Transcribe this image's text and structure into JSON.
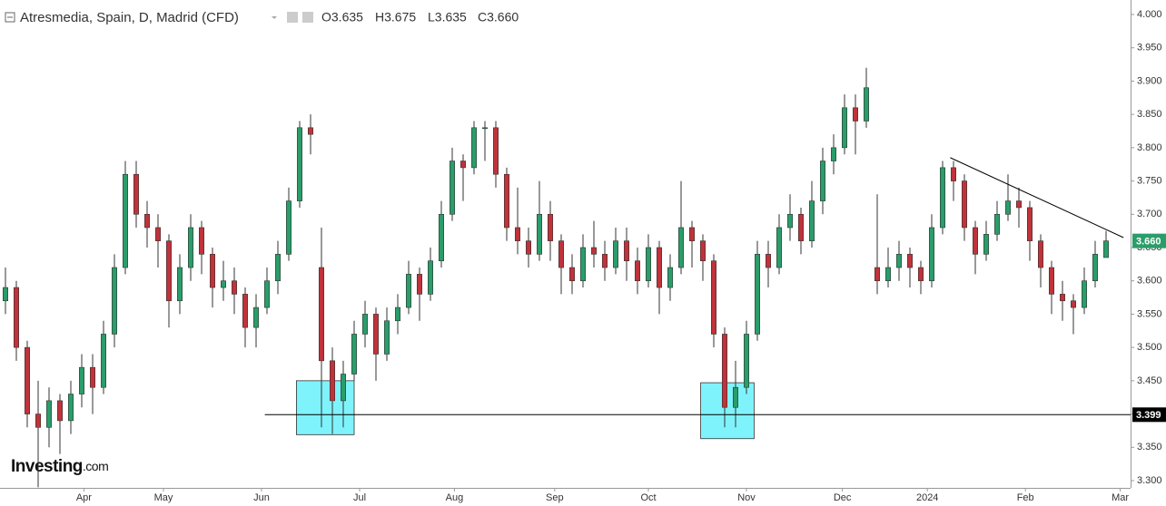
{
  "chart_data": {
    "type": "candlestick",
    "title": "Atresmedia, Spain, D, Madrid (CFD)",
    "legend_values": [
      "O3.635",
      "H3.675",
      "L3.635",
      "C3.660"
    ],
    "brand": [
      "Investing",
      ".com"
    ],
    "up_color": "#2a9d6a",
    "down_color": "#c0333a",
    "xlim": [
      -0.5,
      103.25
    ],
    "xticks": [
      {
        "value": 7.2,
        "label": "Apr"
      },
      {
        "value": 14.5,
        "label": "May"
      },
      {
        "value": 23.5,
        "label": "Jun"
      },
      {
        "value": 32.5,
        "label": "Jul"
      },
      {
        "value": 41.2,
        "label": "Aug"
      },
      {
        "value": 50.4,
        "label": "Sep"
      },
      {
        "value": 59,
        "label": "Oct"
      },
      {
        "value": 68,
        "label": "Nov"
      },
      {
        "value": 76.8,
        "label": "Dec"
      },
      {
        "value": 84.6,
        "label": "2024"
      },
      {
        "value": 93.6,
        "label": "Feb"
      },
      {
        "value": 102.3,
        "label": "Mar"
      }
    ],
    "ylim": [
      3.3,
      4.0
    ],
    "yticks": [
      {
        "value": 4.0,
        "label": "4.000"
      },
      {
        "value": 3.95,
        "label": "3.950"
      },
      {
        "value": 3.9,
        "label": "3.900"
      },
      {
        "value": 3.85,
        "label": "3.850"
      },
      {
        "value": 3.8,
        "label": "3.800"
      },
      {
        "value": 3.75,
        "label": "3.750"
      },
      {
        "value": 3.7,
        "label": "3.700"
      },
      {
        "value": 3.65,
        "label": "3.650"
      },
      {
        "value": 3.6,
        "label": "3.600"
      },
      {
        "value": 3.55,
        "label": "3.550"
      },
      {
        "value": 3.5,
        "label": "3.500"
      },
      {
        "value": 3.45,
        "label": "3.450"
      },
      {
        "value": 3.4,
        "label": "3.400"
      },
      {
        "value": 3.35,
        "label": "3.350"
      },
      {
        "value": 3.3,
        "label": "3.300"
      }
    ],
    "series": [
      {
        "ohlc": [
          [
            3.57,
            3.62,
            3.55,
            3.59
          ],
          [
            3.59,
            3.6,
            3.48,
            3.5
          ],
          [
            3.5,
            3.51,
            3.38,
            3.4
          ],
          [
            3.4,
            3.45,
            3.29,
            3.38
          ],
          [
            3.38,
            3.44,
            3.35,
            3.42
          ],
          [
            3.42,
            3.43,
            3.34,
            3.39
          ],
          [
            3.39,
            3.45,
            3.37,
            3.43
          ],
          [
            3.43,
            3.49,
            3.41,
            3.47
          ],
          [
            3.47,
            3.49,
            3.4,
            3.44
          ],
          [
            3.44,
            3.54,
            3.43,
            3.52
          ],
          [
            3.52,
            3.64,
            3.5,
            3.62
          ],
          [
            3.62,
            3.78,
            3.61,
            3.76
          ],
          [
            3.76,
            3.78,
            3.68,
            3.7
          ],
          [
            3.7,
            3.72,
            3.65,
            3.68
          ],
          [
            3.68,
            3.7,
            3.62,
            3.66
          ],
          [
            3.66,
            3.67,
            3.53,
            3.57
          ],
          [
            3.57,
            3.64,
            3.55,
            3.62
          ],
          [
            3.62,
            3.7,
            3.6,
            3.68
          ],
          [
            3.68,
            3.69,
            3.61,
            3.64
          ],
          [
            3.64,
            3.65,
            3.56,
            3.59
          ],
          [
            3.59,
            3.63,
            3.57,
            3.6
          ],
          [
            3.6,
            3.62,
            3.55,
            3.58
          ],
          [
            3.58,
            3.59,
            3.5,
            3.53
          ],
          [
            3.53,
            3.58,
            3.5,
            3.56
          ],
          [
            3.56,
            3.62,
            3.55,
            3.6
          ],
          [
            3.6,
            3.66,
            3.58,
            3.64
          ],
          [
            3.64,
            3.74,
            3.63,
            3.72
          ],
          [
            3.72,
            3.84,
            3.71,
            3.83
          ],
          [
            3.83,
            3.85,
            3.79,
            3.82
          ],
          [
            3.62,
            3.68,
            3.38,
            3.48
          ],
          [
            3.48,
            3.5,
            3.37,
            3.42
          ],
          [
            3.42,
            3.48,
            3.38,
            3.46
          ],
          [
            3.46,
            3.54,
            3.45,
            3.52
          ],
          [
            3.52,
            3.57,
            3.5,
            3.55
          ],
          [
            3.55,
            3.56,
            3.45,
            3.49
          ],
          [
            3.49,
            3.56,
            3.48,
            3.54
          ],
          [
            3.54,
            3.58,
            3.52,
            3.56
          ],
          [
            3.56,
            3.63,
            3.55,
            3.61
          ],
          [
            3.61,
            3.62,
            3.54,
            3.58
          ],
          [
            3.58,
            3.65,
            3.57,
            3.63
          ],
          [
            3.63,
            3.72,
            3.62,
            3.7
          ],
          [
            3.7,
            3.8,
            3.69,
            3.78
          ],
          [
            3.78,
            3.79,
            3.72,
            3.77
          ],
          [
            3.77,
            3.84,
            3.76,
            3.83
          ],
          [
            3.83,
            3.84,
            3.78,
            3.83
          ],
          [
            3.83,
            3.84,
            3.74,
            3.76
          ],
          [
            3.76,
            3.77,
            3.66,
            3.68
          ],
          [
            3.68,
            3.74,
            3.64,
            3.66
          ],
          [
            3.66,
            3.68,
            3.62,
            3.64
          ],
          [
            3.64,
            3.75,
            3.63,
            3.7
          ],
          [
            3.7,
            3.72,
            3.63,
            3.66
          ],
          [
            3.66,
            3.67,
            3.58,
            3.62
          ],
          [
            3.62,
            3.64,
            3.58,
            3.6
          ],
          [
            3.6,
            3.67,
            3.59,
            3.65
          ],
          [
            3.65,
            3.69,
            3.62,
            3.64
          ],
          [
            3.64,
            3.66,
            3.6,
            3.62
          ],
          [
            3.62,
            3.68,
            3.61,
            3.66
          ],
          [
            3.66,
            3.68,
            3.6,
            3.63
          ],
          [
            3.63,
            3.65,
            3.58,
            3.6
          ],
          [
            3.6,
            3.67,
            3.59,
            3.65
          ],
          [
            3.65,
            3.66,
            3.55,
            3.59
          ],
          [
            3.59,
            3.64,
            3.57,
            3.62
          ],
          [
            3.62,
            3.75,
            3.61,
            3.68
          ],
          [
            3.68,
            3.69,
            3.62,
            3.66
          ],
          [
            3.66,
            3.67,
            3.6,
            3.63
          ],
          [
            3.63,
            3.64,
            3.5,
            3.52
          ],
          [
            3.52,
            3.53,
            3.38,
            3.41
          ],
          [
            3.41,
            3.48,
            3.38,
            3.44
          ],
          [
            3.44,
            3.54,
            3.43,
            3.52
          ],
          [
            3.52,
            3.66,
            3.51,
            3.64
          ],
          [
            3.64,
            3.66,
            3.59,
            3.62
          ],
          [
            3.62,
            3.7,
            3.61,
            3.68
          ],
          [
            3.68,
            3.73,
            3.66,
            3.7
          ],
          [
            3.7,
            3.71,
            3.64,
            3.66
          ],
          [
            3.66,
            3.75,
            3.65,
            3.72
          ],
          [
            3.72,
            3.8,
            3.7,
            3.78
          ],
          [
            3.78,
            3.82,
            3.76,
            3.8
          ],
          [
            3.8,
            3.88,
            3.79,
            3.86
          ],
          [
            3.86,
            3.88,
            3.79,
            3.84
          ],
          [
            3.84,
            3.92,
            3.83,
            3.89
          ],
          [
            3.62,
            3.73,
            3.58,
            3.6
          ],
          [
            3.6,
            3.65,
            3.59,
            3.62
          ],
          [
            3.62,
            3.66,
            3.6,
            3.64
          ],
          [
            3.64,
            3.65,
            3.59,
            3.62
          ],
          [
            3.62,
            3.63,
            3.58,
            3.6
          ],
          [
            3.6,
            3.7,
            3.59,
            3.68
          ],
          [
            3.68,
            3.78,
            3.67,
            3.77
          ],
          [
            3.77,
            3.78,
            3.72,
            3.75
          ],
          [
            3.75,
            3.76,
            3.66,
            3.68
          ],
          [
            3.68,
            3.69,
            3.61,
            3.64
          ],
          [
            3.64,
            3.69,
            3.63,
            3.67
          ],
          [
            3.67,
            3.72,
            3.66,
            3.7
          ],
          [
            3.7,
            3.76,
            3.69,
            3.72
          ],
          [
            3.72,
            3.74,
            3.68,
            3.71
          ],
          [
            3.71,
            3.72,
            3.63,
            3.66
          ],
          [
            3.66,
            3.67,
            3.59,
            3.62
          ],
          [
            3.62,
            3.63,
            3.55,
            3.58
          ],
          [
            3.58,
            3.6,
            3.54,
            3.57
          ],
          [
            3.57,
            3.58,
            3.52,
            3.56
          ],
          [
            3.56,
            3.62,
            3.55,
            3.6
          ],
          [
            3.6,
            3.66,
            3.59,
            3.64
          ],
          [
            3.635,
            3.675,
            3.635,
            3.66
          ]
        ]
      }
    ],
    "support": {
      "x": 23.8,
      "value": 3.399,
      "label": "3.399"
    },
    "last_price": {
      "value": 3.66,
      "label": "3.660",
      "color": "#2a9d6a"
    },
    "trendline": {
      "x": [
        86.7,
        102.6
      ],
      "y": [
        3.785,
        3.665
      ]
    },
    "boxes": [
      {
        "x": [
          26.7,
          32.0
        ],
        "y": [
          3.369,
          3.45
        ]
      },
      {
        "x": [
          63.8,
          68.7
        ],
        "y": [
          3.363,
          3.447
        ]
      }
    ],
    "box_color": "#7ff3fb"
  }
}
